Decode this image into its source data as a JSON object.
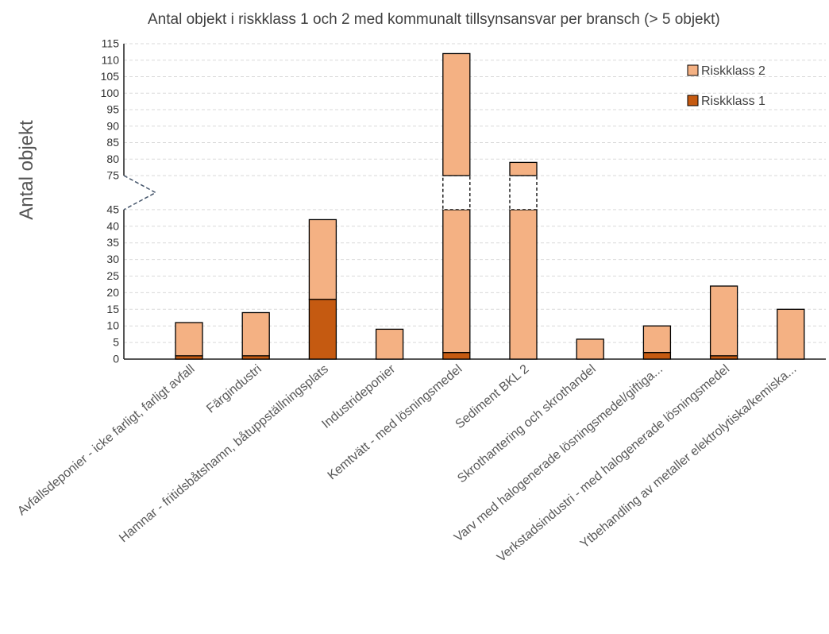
{
  "chart_data": {
    "type": "bar",
    "stacked": true,
    "title": "Antal objekt i riskklass 1 och 2 med kommunalt tillsynsansvar per bransch (> 5 objekt)",
    "xlabel": "",
    "ylabel": "Antal objekt",
    "y_axis_break": [
      45,
      75
    ],
    "y_ticks_lower": [
      0,
      5,
      10,
      15,
      20,
      25,
      30,
      35,
      40,
      45
    ],
    "y_ticks_upper": [
      75,
      80,
      85,
      90,
      95,
      100,
      105,
      110,
      115
    ],
    "ylim": [
      0,
      115
    ],
    "grid": true,
    "legend_position": "top-right",
    "categories": [
      "Avfallsdeponier - icke farligt, farligt avfall",
      "Färgindustri",
      "Hamnar - fritidsbåtshamn, båtuppställningsplats",
      "Industrideponier",
      "Kemtvätt - med lösningsmedel",
      "Sediment BKL 2",
      "Skrothantering och skrothandel",
      "Varv med halogenerade lösningsmedel/giftiga...",
      "Verkstadsindustri - med halogenerade lösningsmedel",
      "Ytbehandling av metaller elektrolytiska/kemiska..."
    ],
    "series": [
      {
        "name": "Riskklass 1",
        "color": "#c55a11",
        "values": [
          1,
          1,
          18,
          0,
          2,
          0,
          0,
          2,
          1,
          0
        ]
      },
      {
        "name": "Riskklass 2",
        "color": "#f4b183",
        "values": [
          10,
          13,
          24,
          9,
          110,
          79,
          6,
          8,
          21,
          15
        ]
      }
    ],
    "legend": [
      {
        "name": "Riskklass 2",
        "color": "#f4b183"
      },
      {
        "name": "Riskklass 1",
        "color": "#c55a11"
      }
    ]
  }
}
